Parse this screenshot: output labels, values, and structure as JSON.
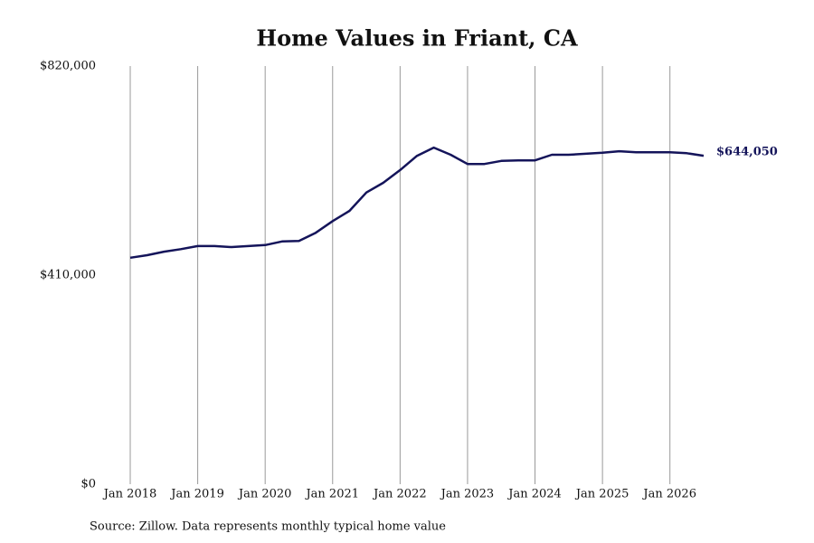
{
  "chart_data": {
    "type": "line",
    "title": "Home Values in Friant, CA",
    "source": "Source: Zillow. Data represents monthly typical home value",
    "x": [
      "2018-01",
      "2018-04",
      "2018-07",
      "2018-10",
      "2019-01",
      "2019-04",
      "2019-07",
      "2019-10",
      "2020-01",
      "2020-04",
      "2020-07",
      "2020-10",
      "2021-01",
      "2021-04",
      "2021-07",
      "2021-10",
      "2022-01",
      "2022-04",
      "2022-07",
      "2022-10",
      "2023-01",
      "2023-04",
      "2023-07",
      "2023-10",
      "2024-01",
      "2024-04",
      "2024-07",
      "2024-10",
      "2025-01",
      "2025-04",
      "2025-07",
      "2025-10",
      "2026-01",
      "2026-04",
      "2026-07"
    ],
    "series": [
      {
        "name": "Home value",
        "color": "#14145a",
        "values": [
          444000,
          449000,
          456000,
          461000,
          467000,
          467000,
          465000,
          467000,
          469000,
          476000,
          477000,
          493000,
          516000,
          536000,
          572000,
          591000,
          616000,
          644000,
          660000,
          646000,
          628000,
          628000,
          634000,
          635000,
          635000,
          646000,
          646000,
          648000,
          650000,
          653000,
          651000,
          651000,
          651000,
          649000,
          644050
        ],
        "value_labels": [
          null,
          null,
          null,
          null,
          null,
          null,
          null,
          null,
          null,
          null,
          null,
          null,
          null,
          null,
          null,
          null,
          null,
          null,
          null,
          null,
          null,
          null,
          null,
          null,
          null,
          null,
          null,
          null,
          null,
          null,
          null,
          null,
          null,
          null,
          "$644,050"
        ]
      }
    ],
    "xlim": [
      "2018-01",
      "2026-07"
    ],
    "xticks": [
      {
        "value": "2018-01",
        "label": "Jan 2018"
      },
      {
        "value": "2019-01",
        "label": "Jan 2019"
      },
      {
        "value": "2020-01",
        "label": "Jan 2020"
      },
      {
        "value": "2021-01",
        "label": "Jan 2021"
      },
      {
        "value": "2022-01",
        "label": "Jan 2022"
      },
      {
        "value": "2023-01",
        "label": "Jan 2023"
      },
      {
        "value": "2024-01",
        "label": "Jan 2024"
      },
      {
        "value": "2025-01",
        "label": "Jan 2025"
      },
      {
        "value": "2026-01",
        "label": "Jan 2026"
      }
    ],
    "ylim": [
      0,
      820000
    ],
    "yticks": [
      {
        "value": 0,
        "label": "$0"
      },
      {
        "value": 410000,
        "label": "$410,000"
      },
      {
        "value": 820000,
        "label": "$820,000"
      }
    ],
    "grid": "x"
  }
}
